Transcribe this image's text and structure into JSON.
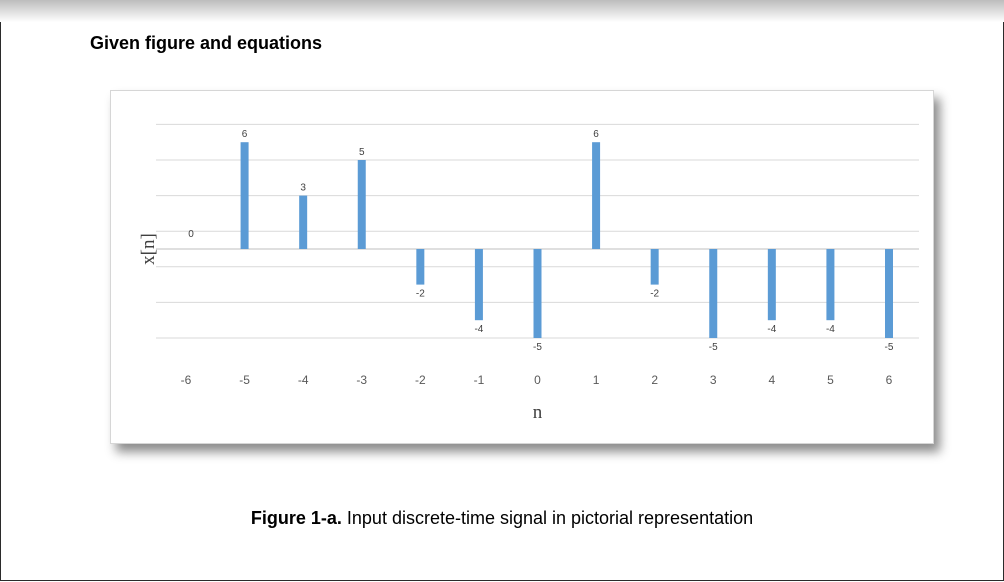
{
  "heading": "Given figure and equations",
  "caption": {
    "label": "Figure 1-a.",
    "text": " Input discrete-time signal in pictorial representation"
  },
  "chart_data": {
    "type": "bar",
    "xlabel": "n",
    "ylabel": "x[n]",
    "categories": [
      "-6",
      "-5",
      "-4",
      "-3",
      "-2",
      "-1",
      "0",
      "1",
      "2",
      "3",
      "4",
      "5",
      "6"
    ],
    "values": [
      0,
      6,
      3,
      5,
      -2,
      -4,
      -5,
      6,
      -2,
      -5,
      -4,
      -4,
      -5
    ],
    "ylim": [
      -6,
      8
    ],
    "grid": true,
    "bar_color": "#5b9bd5"
  }
}
